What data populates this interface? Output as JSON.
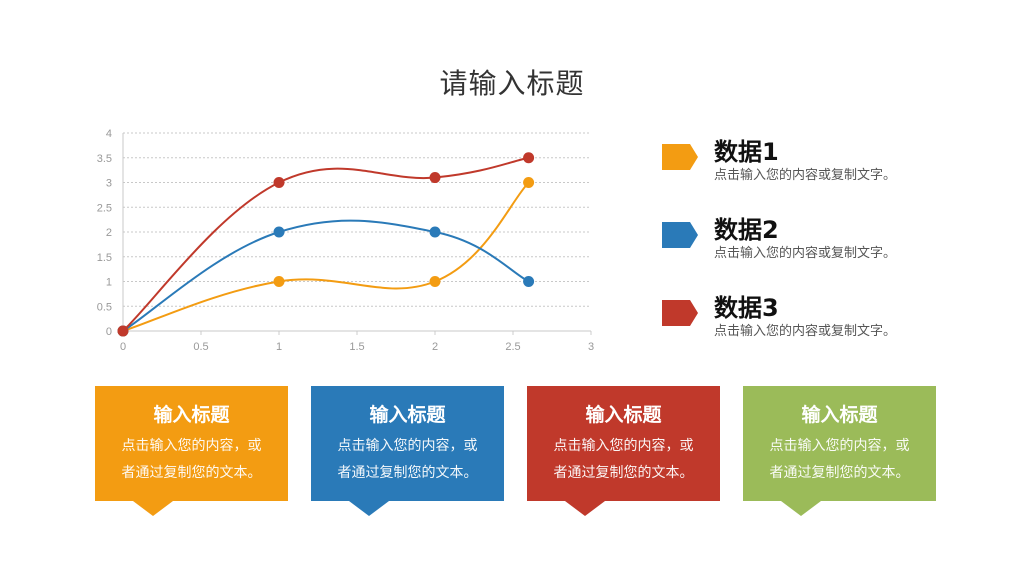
{
  "title": "请输入标题",
  "chart_data": {
    "type": "line",
    "title": "",
    "xlabel": "",
    "ylabel": "",
    "xlim": [
      0,
      3
    ],
    "ylim": [
      0,
      4
    ],
    "x_ticks": [
      "0",
      "0.5",
      "1",
      "1.5",
      "2",
      "2.5",
      "3"
    ],
    "y_ticks": [
      "0",
      "0.5",
      "1",
      "1.5",
      "2",
      "2.5",
      "3",
      "3.5",
      "4"
    ],
    "grid": "horizontal dashed",
    "smooth": true,
    "x": [
      0,
      1,
      2,
      2.6
    ],
    "series": [
      {
        "name": "数据1",
        "color": "#F39C12",
        "values": [
          0,
          1,
          1,
          3
        ]
      },
      {
        "name": "数据2",
        "color": "#2A7AB8",
        "values": [
          0,
          2,
          2,
          1
        ]
      },
      {
        "name": "数据3",
        "color": "#C0392B",
        "values": [
          0,
          3,
          3.1,
          3.5
        ]
      }
    ],
    "legend_position": "right"
  },
  "legend": [
    {
      "name": "数据1",
      "desc": "点击输入您的内容或复制文字。",
      "color": "#F39C12"
    },
    {
      "name": "数据2",
      "desc": "点击输入您的内容或复制文字。",
      "color": "#2A7AB8"
    },
    {
      "name": "数据3",
      "desc": "点击输入您的内容或复制文字。",
      "color": "#C0392B"
    }
  ],
  "cards": [
    {
      "title": "输入标题",
      "line1": "点击输入您的内容，或",
      "line2": "者通过复制您的文本。",
      "color": "#F39C12"
    },
    {
      "title": "输入标题",
      "line1": "点击输入您的内容，或",
      "line2": "者通过复制您的文本。",
      "color": "#2A7AB8"
    },
    {
      "title": "输入标题",
      "line1": "点击输入您的内容，或",
      "line2": "者通过复制您的文本。",
      "color": "#C0392B"
    },
    {
      "title": "输入标题",
      "line1": "点击输入您的内容，或",
      "line2": "者通过复制您的文本。",
      "color": "#9BBB59"
    }
  ]
}
